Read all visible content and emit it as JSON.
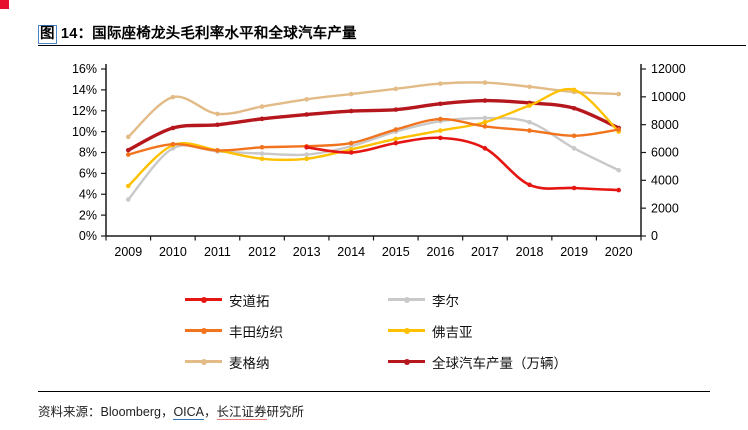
{
  "header": {
    "title_first_char": "图",
    "title_rest": "  14：国际座椅龙头毛利率水平和全球汽车产量"
  },
  "footer": {
    "prefix": "资料来源：Bloomberg，",
    "oica": "OICA",
    "separator": "，",
    "changjiang": "长江证券",
    "suffix": "研究所"
  },
  "chart_data": {
    "type": "line",
    "title": "国际座椅龙头毛利率水平和全球汽车产量",
    "x": [
      "2009",
      "2010",
      "2011",
      "2012",
      "2013",
      "2014",
      "2015",
      "2016",
      "2017",
      "2018",
      "2019",
      "2020"
    ],
    "left_axis": {
      "unit": "%",
      "min": 0,
      "max": 16,
      "tick_values": [
        0,
        2,
        4,
        6,
        8,
        10,
        12,
        14,
        16
      ],
      "tick_labels": [
        "0%",
        "2%",
        "4%",
        "6%",
        "8%",
        "10%",
        "12%",
        "14%",
        "16%"
      ]
    },
    "right_axis": {
      "unit": "万辆",
      "min": 0,
      "max": 12000,
      "tick_values": [
        0,
        2000,
        4000,
        6000,
        8000,
        10000,
        12000
      ],
      "tick_labels": [
        "0",
        "2000",
        "4000",
        "6000",
        "8000",
        "10000",
        "12000"
      ]
    },
    "grid": false,
    "legend_position": "bottom",
    "series": [
      {
        "name": "安道拓",
        "slug": "adient",
        "color": "#e51511",
        "axis": "left",
        "line_width": 2.6,
        "values": [
          null,
          null,
          null,
          null,
          8.5,
          8.0,
          8.9,
          9.4,
          8.4,
          4.9,
          4.6,
          4.4
        ]
      },
      {
        "name": "李尔",
        "slug": "lear",
        "color": "#c9c9c9",
        "axis": "left",
        "line_width": 2.4,
        "values": [
          3.5,
          8.4,
          8.1,
          7.9,
          7.8,
          8.6,
          10.0,
          11.0,
          11.3,
          10.9,
          8.4,
          6.3
        ]
      },
      {
        "name": "丰田纺织",
        "slug": "toyota-boshoku",
        "color": "#f1731d",
        "axis": "left",
        "line_width": 2.4,
        "values": [
          7.8,
          8.8,
          8.2,
          8.5,
          8.6,
          8.9,
          10.2,
          11.2,
          10.5,
          10.1,
          9.6,
          10.2
        ]
      },
      {
        "name": "佛吉亚",
        "slug": "faurecia",
        "color": "#ffc000",
        "axis": "left",
        "line_width": 2.4,
        "values": [
          4.8,
          8.7,
          8.2,
          7.4,
          7.4,
          8.3,
          9.3,
          10.1,
          10.9,
          12.5,
          14.0,
          10.0
        ]
      },
      {
        "name": "麦格纳",
        "slug": "magna",
        "color": "#e2bb87",
        "axis": "left",
        "line_width": 2.4,
        "values": [
          9.5,
          13.3,
          11.7,
          12.4,
          13.1,
          13.6,
          14.1,
          14.6,
          14.7,
          14.3,
          13.8,
          13.6
        ]
      },
      {
        "name": "全球汽车产量（万辆）",
        "slug": "global-auto-production",
        "color": "#b5171c",
        "axis": "right",
        "line_width": 3.4,
        "values": [
          6170,
          7760,
          7990,
          8420,
          8730,
          8980,
          9080,
          9500,
          9730,
          9560,
          9180,
          7760
        ]
      }
    ],
    "legend": [
      "安道拓",
      "李尔",
      "丰田纺织",
      "佛吉亚",
      "麦格纳",
      "全球汽车产量（万辆）"
    ],
    "draw_order": [
      "李尔",
      "麦格纳",
      "全球汽车产量（万辆）",
      "佛吉亚",
      "丰田纺织",
      "安道拓"
    ]
  }
}
